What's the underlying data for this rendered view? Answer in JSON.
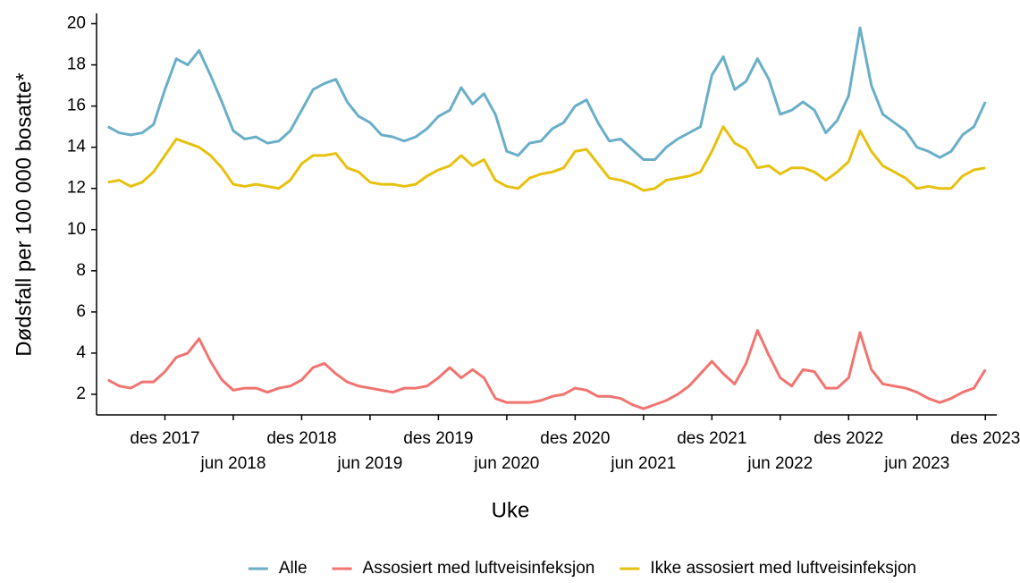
{
  "chart_data": {
    "type": "line",
    "x_label": "Uke",
    "y_label": "Dødsfall per 100 000 bosatte*",
    "x": [
      "2017-07",
      "2017-08",
      "2017-09",
      "2017-10",
      "2017-11",
      "2017-12",
      "2018-01",
      "2018-02",
      "2018-03",
      "2018-04",
      "2018-05",
      "2018-06",
      "2018-07",
      "2018-08",
      "2018-09",
      "2018-10",
      "2018-11",
      "2018-12",
      "2019-01",
      "2019-02",
      "2019-03",
      "2019-04",
      "2019-05",
      "2019-06",
      "2019-07",
      "2019-08",
      "2019-09",
      "2019-10",
      "2019-11",
      "2019-12",
      "2020-01",
      "2020-02",
      "2020-03",
      "2020-04",
      "2020-05",
      "2020-06",
      "2020-07",
      "2020-08",
      "2020-09",
      "2020-10",
      "2020-11",
      "2020-12",
      "2021-01",
      "2021-02",
      "2021-03",
      "2021-04",
      "2021-05",
      "2021-06",
      "2021-07",
      "2021-08",
      "2021-09",
      "2021-10",
      "2021-11",
      "2021-12",
      "2022-01",
      "2022-02",
      "2022-03",
      "2022-04",
      "2022-05",
      "2022-06",
      "2022-07",
      "2022-08",
      "2022-09",
      "2022-10",
      "2022-11",
      "2022-12",
      "2023-01",
      "2023-02",
      "2023-03",
      "2023-04",
      "2023-05",
      "2023-06",
      "2023-07",
      "2023-08",
      "2023-09",
      "2023-10",
      "2023-11",
      "2023-12"
    ],
    "series": [
      {
        "name": "Alle",
        "color": "#6aaec8",
        "values": [
          15.0,
          14.7,
          14.6,
          14.7,
          15.1,
          16.8,
          18.3,
          18.0,
          18.7,
          17.5,
          16.2,
          14.8,
          14.4,
          14.5,
          14.2,
          14.3,
          14.8,
          15.8,
          16.8,
          17.1,
          17.3,
          16.2,
          15.5,
          15.2,
          14.6,
          14.5,
          14.3,
          14.5,
          14.9,
          15.5,
          15.8,
          16.9,
          16.1,
          16.6,
          15.6,
          13.8,
          13.6,
          14.2,
          14.3,
          14.9,
          15.2,
          16.0,
          16.3,
          15.2,
          14.3,
          14.4,
          13.9,
          13.4,
          13.4,
          14.0,
          14.4,
          14.7,
          15.0,
          17.5,
          18.4,
          16.8,
          17.2,
          18.3,
          17.3,
          15.6,
          15.8,
          16.2,
          15.8,
          14.7,
          15.3,
          16.5,
          19.8,
          17.0,
          15.6,
          15.2,
          14.8,
          14.0,
          13.8,
          13.5,
          13.8,
          14.6,
          15.0,
          16.2
        ]
      },
      {
        "name": "Assosiert med luftveisinfeksjon",
        "color": "#f07470",
        "values": [
          2.7,
          2.4,
          2.3,
          2.6,
          2.6,
          3.1,
          3.8,
          4.0,
          4.7,
          3.6,
          2.7,
          2.2,
          2.3,
          2.3,
          2.1,
          2.3,
          2.4,
          2.7,
          3.3,
          3.5,
          3.0,
          2.6,
          2.4,
          2.3,
          2.2,
          2.1,
          2.3,
          2.3,
          2.4,
          2.8,
          3.3,
          2.8,
          3.2,
          2.8,
          1.8,
          1.6,
          1.6,
          1.6,
          1.7,
          1.9,
          2.0,
          2.3,
          2.2,
          1.9,
          1.9,
          1.8,
          1.5,
          1.3,
          1.5,
          1.7,
          2.0,
          2.4,
          3.0,
          3.6,
          3.0,
          2.5,
          3.5,
          5.1,
          3.9,
          2.8,
          2.4,
          3.2,
          3.1,
          2.3,
          2.3,
          2.8,
          5.0,
          3.2,
          2.5,
          2.4,
          2.3,
          2.1,
          1.8,
          1.6,
          1.8,
          2.1,
          2.3,
          3.2
        ]
      },
      {
        "name": "Ikke assosiert med luftveisinfeksjon",
        "color": "#e6c10e",
        "values": [
          12.3,
          12.4,
          12.1,
          12.3,
          12.8,
          13.6,
          14.4,
          14.2,
          14.0,
          13.6,
          13.0,
          12.2,
          12.1,
          12.2,
          12.1,
          12.0,
          12.4,
          13.2,
          13.6,
          13.6,
          13.7,
          13.0,
          12.8,
          12.3,
          12.2,
          12.2,
          12.1,
          12.2,
          12.6,
          12.9,
          13.1,
          13.6,
          13.1,
          13.4,
          12.4,
          12.1,
          12.0,
          12.5,
          12.7,
          12.8,
          13.0,
          13.8,
          13.9,
          13.2,
          12.5,
          12.4,
          12.2,
          11.9,
          12.0,
          12.4,
          12.5,
          12.6,
          12.8,
          13.8,
          15.0,
          14.2,
          13.9,
          13.0,
          13.1,
          12.7,
          13.0,
          13.0,
          12.8,
          12.4,
          12.8,
          13.3,
          14.8,
          13.8,
          13.1,
          12.8,
          12.5,
          12.0,
          12.1,
          12.0,
          12.0,
          12.6,
          12.9,
          13.0
        ]
      }
    ],
    "xlim": [
      "2017-06",
      "2024-01"
    ],
    "xticks": [
      {
        "value": "2017-12",
        "label": "des 2017"
      },
      {
        "value": "2018-06",
        "label": "jun 2018"
      },
      {
        "value": "2018-12",
        "label": "des 2018"
      },
      {
        "value": "2019-06",
        "label": "jun 2019"
      },
      {
        "value": "2019-12",
        "label": "des 2019"
      },
      {
        "value": "2020-06",
        "label": "jun 2020"
      },
      {
        "value": "2020-12",
        "label": "des 2020"
      },
      {
        "value": "2021-06",
        "label": "jun 2021"
      },
      {
        "value": "2021-12",
        "label": "des 2021"
      },
      {
        "value": "2022-06",
        "label": "jun 2022"
      },
      {
        "value": "2022-12",
        "label": "des 2022"
      },
      {
        "value": "2023-06",
        "label": "jun 2023"
      },
      {
        "value": "2023-12",
        "label": "des 2023"
      }
    ],
    "ylim": [
      1,
      20.5
    ],
    "yticks": [
      2,
      4,
      6,
      8,
      10,
      12,
      14,
      16,
      18,
      20
    ],
    "legend": "bottom"
  }
}
